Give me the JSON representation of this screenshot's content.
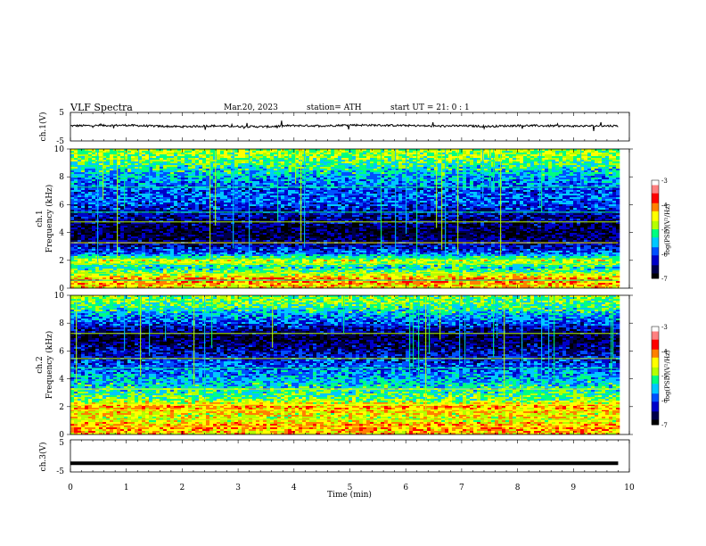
{
  "header": {
    "title": "VLF  Spectra",
    "date": "Mar.20, 2023",
    "station": "station= ATH",
    "start": "start  UT  =    21: 0   : 1"
  },
  "colors": {
    "colormap": [
      "#000000",
      "#00004a",
      "#0000c8",
      "#0050ff",
      "#00c8ff",
      "#00ff80",
      "#b4ff00",
      "#ffff00",
      "#ff8000",
      "#ff0000",
      "#ff8080",
      "#ffffff"
    ],
    "trace": "#000000",
    "background": "#ffffff"
  },
  "chart_data": [
    {
      "type": "line",
      "panel": "ch1-waveform",
      "ylabel": "ch.1(V)",
      "ylim": [
        -5,
        5
      ],
      "yticks": [
        "5",
        "-5"
      ],
      "xlim": [
        0,
        10
      ],
      "series": [
        {
          "x": [
            0,
            0.5,
            1,
            1.5,
            2,
            2.5,
            3,
            3.5,
            4,
            4.5,
            5,
            5.5,
            6,
            6.5,
            7,
            7.5,
            8,
            8.5,
            9,
            9.5,
            9.8
          ],
          "y": [
            0.3,
            0.4,
            0.5,
            0.2,
            0.0,
            0.3,
            0.1,
            0.0,
            0.4,
            0.3,
            0.6,
            0.5,
            0.4,
            0.2,
            0.3,
            0.1,
            0.4,
            0.3,
            0.2,
            0.3,
            0.3
          ]
        }
      ]
    },
    {
      "type": "heatmap",
      "panel": "ch1-spectrogram",
      "channel_label": "ch.1",
      "ylabel": "Frequency  (kHz)",
      "ylim": [
        0,
        10
      ],
      "yticks": [
        "0",
        "2",
        "4",
        "6",
        "8",
        "10"
      ],
      "xlim": [
        0,
        10
      ],
      "data_end_min": 9.8,
      "colorbar": {
        "label": "log(PSD)(V²/Hz)",
        "range": [
          -7,
          -3
        ],
        "ticks": [
          "-3",
          "-4",
          "-5",
          "-6",
          "-7"
        ]
      },
      "freq_profile": [
        {
          "f": 0.2,
          "v": -4.4
        },
        {
          "f": 0.6,
          "v": -4.0
        },
        {
          "f": 1.0,
          "v": -4.8
        },
        {
          "f": 1.5,
          "v": -5.4
        },
        {
          "f": 2.0,
          "v": -4.6
        },
        {
          "f": 2.5,
          "v": -5.9
        },
        {
          "f": 3.0,
          "v": -6.3
        },
        {
          "f": 3.5,
          "v": -6.6
        },
        {
          "f": 4.0,
          "v": -6.8
        },
        {
          "f": 4.5,
          "v": -6.6
        },
        {
          "f": 5.0,
          "v": -6.5
        },
        {
          "f": 5.5,
          "v": -6.3
        },
        {
          "f": 6.0,
          "v": -6.0
        },
        {
          "f": 6.5,
          "v": -5.9
        },
        {
          "f": 7.0,
          "v": -6.0
        },
        {
          "f": 7.5,
          "v": -5.8
        },
        {
          "f": 8.0,
          "v": -5.6
        },
        {
          "f": 8.5,
          "v": -5.4
        },
        {
          "f": 9.0,
          "v": -5.1
        },
        {
          "f": 9.5,
          "v": -4.9
        },
        {
          "f": 10.0,
          "v": -4.8
        }
      ]
    },
    {
      "type": "heatmap",
      "panel": "ch2-spectrogram",
      "channel_label": "ch.2",
      "ylabel": "Frequency  (kHz)",
      "ylim": [
        0,
        10
      ],
      "yticks": [
        "0",
        "2",
        "4",
        "6",
        "8",
        "10"
      ],
      "xlim": [
        0,
        10
      ],
      "data_end_min": 9.8,
      "colorbar": {
        "label": "log(PSD)(V²/Hz)",
        "range": [
          -7,
          -3
        ],
        "ticks": [
          "-3",
          "-4",
          "-5",
          "-6",
          "-7"
        ]
      },
      "freq_profile": [
        {
          "f": 0.2,
          "v": -4.3
        },
        {
          "f": 0.6,
          "v": -4.1
        },
        {
          "f": 1.0,
          "v": -4.6
        },
        {
          "f": 1.5,
          "v": -4.5
        },
        {
          "f": 2.0,
          "v": -4.2
        },
        {
          "f": 2.5,
          "v": -5.0
        },
        {
          "f": 3.0,
          "v": -5.2
        },
        {
          "f": 3.5,
          "v": -5.4
        },
        {
          "f": 4.0,
          "v": -5.6
        },
        {
          "f": 4.5,
          "v": -5.8
        },
        {
          "f": 5.0,
          "v": -6.0
        },
        {
          "f": 5.5,
          "v": -6.2
        },
        {
          "f": 6.0,
          "v": -6.4
        },
        {
          "f": 6.5,
          "v": -6.6
        },
        {
          "f": 7.0,
          "v": -6.8
        },
        {
          "f": 7.5,
          "v": -6.4
        },
        {
          "f": 8.0,
          "v": -6.0
        },
        {
          "f": 8.5,
          "v": -5.7
        },
        {
          "f": 9.0,
          "v": -5.3
        },
        {
          "f": 9.5,
          "v": -5.0
        },
        {
          "f": 10.0,
          "v": -4.9
        }
      ]
    },
    {
      "type": "line",
      "panel": "ch3-waveform",
      "ylabel": "ch.3(V)",
      "ylim": [
        -5,
        5
      ],
      "yticks": [
        "5",
        "-5"
      ],
      "xlim": [
        0,
        10
      ],
      "xlabel": "Time  (min)",
      "xticks": [
        "0",
        "1",
        "2",
        "3",
        "4",
        "5",
        "6",
        "7",
        "8",
        "9",
        "10"
      ],
      "series": [
        {
          "x": [
            0,
            9.8
          ],
          "y": [
            -2.3,
            -2.3
          ]
        }
      ]
    }
  ]
}
